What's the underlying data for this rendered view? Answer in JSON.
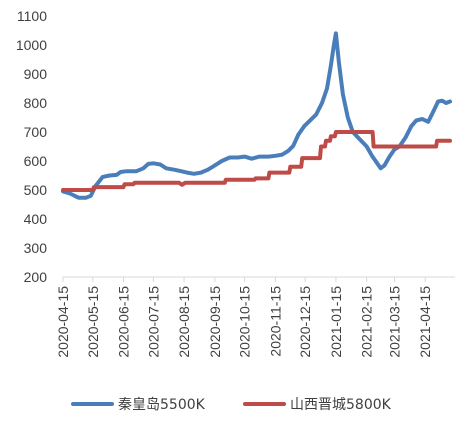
{
  "chart_data": {
    "type": "line",
    "title": "",
    "xlabel": "",
    "ylabel": "",
    "ylim": [
      200,
      1100
    ],
    "yticks": [
      200,
      300,
      400,
      500,
      600,
      700,
      800,
      900,
      1000,
      1100
    ],
    "xlim": [
      "2020-04-15",
      "2021-05-15"
    ],
    "xticks": [
      "2020-04-15",
      "2020-05-15",
      "2020-06-15",
      "2020-07-15",
      "2020-08-15",
      "2020-09-15",
      "2020-10-15",
      "2020-11-15",
      "2020-12-15",
      "2021-01-15",
      "2021-02-15",
      "2021-03-15",
      "2021-04-15"
    ],
    "grid": false,
    "legend_position": "bottom",
    "series": [
      {
        "name": "秦皇岛5500K",
        "color": "#4A7EBB",
        "points": [
          [
            "2020-04-15",
            495
          ],
          [
            "2020-04-22",
            488
          ],
          [
            "2020-04-28",
            478
          ],
          [
            "2020-05-01",
            473
          ],
          [
            "2020-05-08",
            473
          ],
          [
            "2020-05-13",
            480
          ],
          [
            "2020-05-18",
            515
          ],
          [
            "2020-05-25",
            545
          ],
          [
            "2020-06-01",
            550
          ],
          [
            "2020-06-08",
            552
          ],
          [
            "2020-06-12",
            562
          ],
          [
            "2020-06-18",
            565
          ],
          [
            "2020-06-28",
            565
          ],
          [
            "2020-07-05",
            575
          ],
          [
            "2020-07-10",
            590
          ],
          [
            "2020-07-15",
            592
          ],
          [
            "2020-07-22",
            588
          ],
          [
            "2020-07-28",
            575
          ],
          [
            "2020-08-05",
            570
          ],
          [
            "2020-08-12",
            565
          ],
          [
            "2020-08-18",
            560
          ],
          [
            "2020-08-25",
            556
          ],
          [
            "2020-09-01",
            560
          ],
          [
            "2020-09-08",
            570
          ],
          [
            "2020-09-15",
            585
          ],
          [
            "2020-09-22",
            600
          ],
          [
            "2020-09-30",
            612
          ],
          [
            "2020-10-08",
            612
          ],
          [
            "2020-10-15",
            615
          ],
          [
            "2020-10-22",
            608
          ],
          [
            "2020-10-30",
            615
          ],
          [
            "2020-11-08",
            615
          ],
          [
            "2020-11-15",
            618
          ],
          [
            "2020-11-22",
            622
          ],
          [
            "2020-11-28",
            635
          ],
          [
            "2020-12-03",
            652
          ],
          [
            "2020-12-08",
            690
          ],
          [
            "2020-12-14",
            720
          ],
          [
            "2020-12-20",
            740
          ],
          [
            "2020-12-26",
            760
          ],
          [
            "2021-01-01",
            800
          ],
          [
            "2021-01-06",
            850
          ],
          [
            "2021-01-10",
            930
          ],
          [
            "2021-01-13",
            1000
          ],
          [
            "2021-01-15",
            1040
          ],
          [
            "2021-01-18",
            940
          ],
          [
            "2021-01-22",
            830
          ],
          [
            "2021-01-27",
            750
          ],
          [
            "2021-02-01",
            700
          ],
          [
            "2021-02-08",
            675
          ],
          [
            "2021-02-15",
            650
          ],
          [
            "2021-02-20",
            620
          ],
          [
            "2021-02-26",
            590
          ],
          [
            "2021-03-01",
            575
          ],
          [
            "2021-03-05",
            585
          ],
          [
            "2021-03-10",
            615
          ],
          [
            "2021-03-15",
            640
          ],
          [
            "2021-03-20",
            650
          ],
          [
            "2021-03-26",
            680
          ],
          [
            "2021-04-01",
            720
          ],
          [
            "2021-04-06",
            740
          ],
          [
            "2021-04-12",
            745
          ],
          [
            "2021-04-18",
            735
          ],
          [
            "2021-04-23",
            770
          ],
          [
            "2021-04-28",
            805
          ],
          [
            "2021-05-02",
            808
          ],
          [
            "2021-05-06",
            800
          ],
          [
            "2021-05-10",
            805
          ]
        ]
      },
      {
        "name": "山西晋城5800K",
        "color": "#BE4B48",
        "points": [
          [
            "2020-04-15",
            500
          ],
          [
            "2020-05-15",
            500
          ],
          [
            "2020-05-16",
            510
          ],
          [
            "2020-06-15",
            510
          ],
          [
            "2020-06-16",
            520
          ],
          [
            "2020-06-25",
            520
          ],
          [
            "2020-06-26",
            525
          ],
          [
            "2020-08-10",
            525
          ],
          [
            "2020-08-13",
            518
          ],
          [
            "2020-08-16",
            525
          ],
          [
            "2020-09-25",
            525
          ],
          [
            "2020-09-26",
            535
          ],
          [
            "2020-10-25",
            535
          ],
          [
            "2020-10-26",
            540
          ],
          [
            "2020-11-08",
            540
          ],
          [
            "2020-11-09",
            560
          ],
          [
            "2020-11-29",
            560
          ],
          [
            "2020-11-30",
            580
          ],
          [
            "2020-12-11",
            580
          ],
          [
            "2020-12-12",
            610
          ],
          [
            "2020-12-30",
            610
          ],
          [
            "2020-12-31",
            650
          ],
          [
            "2021-01-04",
            650
          ],
          [
            "2021-01-05",
            670
          ],
          [
            "2021-01-09",
            670
          ],
          [
            "2021-01-10",
            685
          ],
          [
            "2021-01-14",
            685
          ],
          [
            "2021-01-15",
            700
          ],
          [
            "2021-02-21",
            700
          ],
          [
            "2021-02-22",
            650
          ],
          [
            "2021-04-26",
            650
          ],
          [
            "2021-04-27",
            670
          ],
          [
            "2021-05-10",
            670
          ]
        ]
      }
    ]
  }
}
